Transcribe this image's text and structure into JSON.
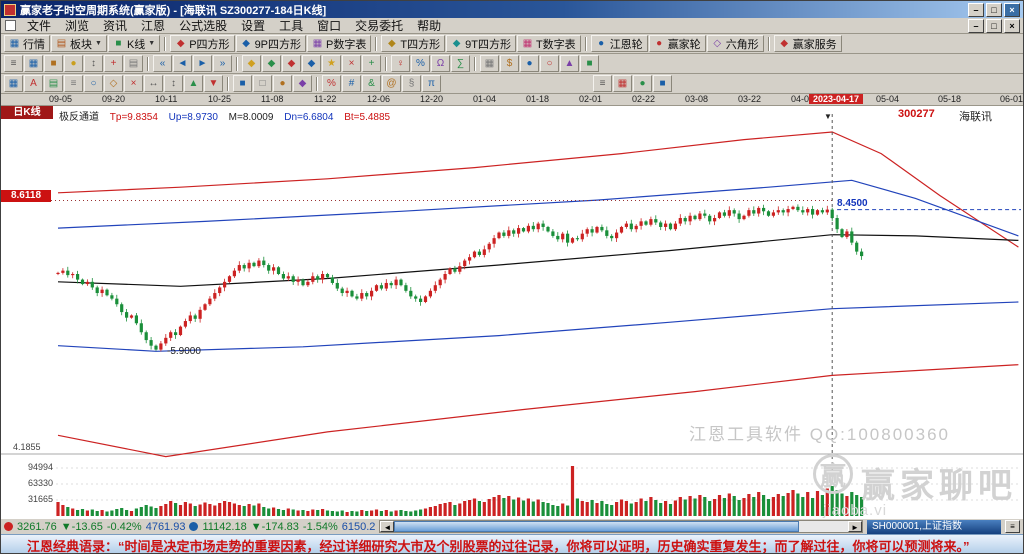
{
  "window": {
    "title": "赢家老子时空周期系统(赢家版) - [海联讯 SZ300277-184日K线]"
  },
  "titlebar_buttons": [
    "–",
    "□",
    "×"
  ],
  "menu": {
    "items": [
      "文件",
      "浏览",
      "资讯",
      "江恩",
      "公式选股",
      "设置",
      "工具",
      "窗口",
      "交易委托",
      "帮助"
    ],
    "child_controls": [
      "–",
      "□",
      "×"
    ]
  },
  "toolbar_main": [
    {
      "label": "行情",
      "icon": "▦",
      "color": "#1a5fa8"
    },
    {
      "label": "板块",
      "icon": "▤",
      "color": "#b0561a",
      "arrow": true
    },
    {
      "label": "K线",
      "icon": "■",
      "color": "#2a8f4a",
      "arrow": true
    },
    "|",
    {
      "label": "P四方形",
      "icon": "◆",
      "color": "#c03030"
    },
    {
      "label": "9P四方形",
      "icon": "◆",
      "color": "#1a5fa8"
    },
    {
      "label": "P数字表",
      "icon": "▦",
      "color": "#7a3fa8"
    },
    "|",
    {
      "label": "T四方形",
      "icon": "◆",
      "color": "#b0861a"
    },
    {
      "label": "9T四方形",
      "icon": "◆",
      "color": "#1a8f8f"
    },
    {
      "label": "T数字表",
      "icon": "▦",
      "color": "#c0306f"
    },
    "|",
    {
      "label": "江恩轮",
      "icon": "●",
      "color": "#1a5fa8"
    },
    {
      "label": "赢家轮",
      "icon": "●",
      "color": "#c03030"
    },
    {
      "label": "六角形",
      "icon": "◇",
      "color": "#7a3fa8"
    },
    "|",
    {
      "label": "赢家服务",
      "icon": "◆",
      "color": "#c03030"
    }
  ],
  "toolbar_icons_2": [
    {
      "g": "≡",
      "c": "#555555"
    },
    {
      "g": "▦",
      "c": "#1a5fa8"
    },
    {
      "g": "■",
      "c": "#b07020"
    },
    {
      "g": "●",
      "c": "#caa020"
    },
    {
      "g": "↕",
      "c": "#555555"
    },
    {
      "g": "+",
      "c": "#c03030"
    },
    {
      "g": "▤",
      "c": "#777777"
    },
    "|",
    {
      "g": "«",
      "c": "#1a5fa8"
    },
    {
      "g": "◄",
      "c": "#1a5fa8"
    },
    {
      "g": "►",
      "c": "#1a5fa8"
    },
    {
      "g": "»",
      "c": "#1a5fa8"
    },
    "|",
    {
      "g": "◆",
      "c": "#d0a020"
    },
    {
      "g": "◆",
      "c": "#2a8f4a"
    },
    {
      "g": "◆",
      "c": "#c03030"
    },
    {
      "g": "◆",
      "c": "#1a5fa8"
    },
    {
      "g": "★",
      "c": "#d0a020"
    },
    {
      "g": "×",
      "c": "#c03030"
    },
    {
      "g": "+",
      "c": "#2a8f4a"
    },
    "|",
    {
      "g": "♀",
      "c": "#c03030"
    },
    {
      "g": "%",
      "c": "#1a5fa8"
    },
    {
      "g": "Ω",
      "c": "#7a3fa8"
    },
    {
      "g": "∑",
      "c": "#2a8f4a"
    },
    "|",
    {
      "g": "▦",
      "c": "#777777"
    },
    {
      "g": "$",
      "c": "#b07020"
    },
    {
      "g": "●",
      "c": "#1a5fa8"
    },
    {
      "g": "○",
      "c": "#c03030"
    },
    {
      "g": "▲",
      "c": "#7a3fa8"
    },
    {
      "g": "■",
      "c": "#2a8f4a"
    }
  ],
  "toolbar_icons_3": [
    {
      "g": "▦",
      "c": "#1a5fa8"
    },
    {
      "g": "A",
      "c": "#c03030"
    },
    {
      "g": "▤",
      "c": "#2a8f4a"
    },
    {
      "g": "≡",
      "c": "#777777"
    },
    {
      "g": "○",
      "c": "#1a5fa8"
    },
    {
      "g": "◇",
      "c": "#b07020"
    },
    {
      "g": "×",
      "c": "#c03030"
    },
    {
      "g": "↔",
      "c": "#555555"
    },
    {
      "g": "↕",
      "c": "#555555"
    },
    {
      "g": "▲",
      "c": "#2a8f4a"
    },
    {
      "g": "▼",
      "c": "#c03030"
    },
    "|",
    {
      "g": "■",
      "c": "#1a5fa8"
    },
    {
      "g": "□",
      "c": "#777777"
    },
    {
      "g": "●",
      "c": "#b07020"
    },
    {
      "g": "◆",
      "c": "#7a3fa8"
    },
    "|",
    {
      "g": "%",
      "c": "#c03030"
    },
    {
      "g": "#",
      "c": "#1a5fa8"
    },
    {
      "g": "&",
      "c": "#2a8f4a"
    },
    {
      "g": "@",
      "c": "#b07020"
    },
    {
      "g": "§",
      "c": "#777777"
    },
    {
      "g": "π",
      "c": "#1a5fa8"
    },
    "gap",
    {
      "g": "≡",
      "c": "#555555"
    },
    {
      "g": "▦",
      "c": "#c03030"
    },
    {
      "g": "●",
      "c": "#2a8f4a"
    },
    {
      "g": "■",
      "c": "#1a5fa8"
    }
  ],
  "chart_labels": {
    "period": "日K线",
    "indicator": "极反通道",
    "tp": "Tp=9.8354",
    "up": "Up=8.9730",
    "m": "M=8.0009",
    "dn": "Dn=6.6804",
    "bt": "Bt=5.4885",
    "code": "300277",
    "name": "海联讯",
    "level_left": "8.6118",
    "level_recent": "8.4500",
    "low_mark": "-5.9000",
    "price_bottom": "4.1855",
    "vol_axis": [
      "94994",
      "63330",
      "31665"
    ]
  },
  "watermarks": {
    "line1": "江恩工具软件  QQ:100800360",
    "logo": "赢",
    "big": "赢家聊吧",
    "url": "jiaoba.vi"
  },
  "status": {
    "sh": {
      "price": "3261.76",
      "change": "▼-13.65",
      "pct": "-0.42%",
      "amount": "4761.93"
    },
    "sz": {
      "price": "11142.18",
      "change": "▼-174.83",
      "pct": "-1.54%",
      "amount": "6150.2"
    },
    "right_label": "SH000001,上证指数"
  },
  "quote": "江恩经典语录：“时间是决定市场走势的重要因素，经过详细研究大市及个别股票的过往记录，你将可以证明，历史确实重复发生；而了解过往，你将可以预测将来。”",
  "chart_data": {
    "type": "candlestick",
    "code": "300277",
    "name": "海联讯",
    "period": "日K线",
    "indicator": {
      "name": "极反通道",
      "Tp": 9.8354,
      "Up": 8.973,
      "M": 8.0009,
      "Dn": 6.6804,
      "Bt": 5.4885
    },
    "levels": {
      "left_level": 8.6118,
      "recent_level": 8.45,
      "marked_low": 5.9,
      "bottom_axis": 4.1855
    },
    "volume_axis": [
      94994,
      63330,
      31665
    ],
    "dates": [
      "09-05",
      "09-20",
      "10-11",
      "10-25",
      "11-08",
      "11-22",
      "12-06",
      "12-20",
      "01-04",
      "01-18",
      "02-01",
      "02-22",
      "03-08",
      "03-22",
      "04-06"
    ],
    "highlight_date": "2023-04-17",
    "future_dates": [
      "05-04",
      "05-18",
      "06-01"
    ],
    "first_open": 7.3,
    "closes": [
      7.32,
      7.36,
      7.28,
      7.3,
      7.2,
      7.12,
      7.16,
      7.06,
      6.96,
      7.02,
      6.92,
      6.86,
      6.76,
      6.62,
      6.52,
      6.56,
      6.42,
      6.26,
      6.12,
      6.02,
      5.95,
      6.06,
      6.16,
      6.26,
      6.21,
      6.36,
      6.46,
      6.56,
      6.5,
      6.66,
      6.76,
      6.86,
      6.96,
      7.06,
      7.16,
      7.26,
      7.36,
      7.46,
      7.4,
      7.5,
      7.44,
      7.54,
      7.46,
      7.36,
      7.42,
      7.3,
      7.22,
      7.26,
      7.16,
      7.2,
      7.1,
      7.16,
      7.26,
      7.2,
      7.3,
      7.24,
      7.14,
      7.04,
      6.96,
      7.0,
      6.9,
      6.86,
      6.96,
      6.9,
      7.0,
      7.1,
      7.04,
      7.14,
      7.1,
      7.2,
      7.1,
      7.0,
      6.9,
      6.86,
      6.8,
      6.9,
      7.0,
      7.1,
      7.2,
      7.3,
      7.4,
      7.34,
      7.44,
      7.54,
      7.6,
      7.7,
      7.64,
      7.74,
      7.84,
      7.94,
      8.04,
      7.98,
      8.08,
      8.02,
      8.12,
      8.06,
      8.16,
      8.1,
      8.2,
      8.14,
      8.06,
      7.98,
      7.92,
      8.02,
      7.86,
      7.94,
      7.92,
      8.02,
      8.1,
      8.04,
      8.14,
      8.08,
      7.98,
      7.94,
      8.04,
      8.14,
      8.2,
      8.1,
      8.16,
      8.24,
      8.18,
      8.28,
      8.22,
      8.14,
      8.2,
      8.1,
      8.2,
      8.3,
      8.24,
      8.34,
      8.28,
      8.38,
      8.34,
      8.24,
      8.3,
      8.4,
      8.34,
      8.44,
      8.38,
      8.28,
      8.34,
      8.44,
      8.38,
      8.48,
      8.42,
      8.34,
      8.4,
      8.44,
      8.4,
      8.46,
      8.5,
      8.44,
      8.4,
      8.46,
      8.36,
      8.44,
      8.4,
      8.45,
      8.3,
      8.1,
      7.96,
      8.06,
      7.86,
      7.7,
      7.62
    ],
    "volumes": [
      28,
      22,
      18,
      15,
      12,
      14,
      11,
      13,
      10,
      12,
      9,
      11,
      14,
      16,
      12,
      10,
      15,
      18,
      22,
      19,
      16,
      20,
      24,
      30,
      26,
      22,
      28,
      25,
      20,
      23,
      27,
      24,
      21,
      26,
      30,
      28,
      25,
      22,
      20,
      24,
      21,
      25,
      18,
      15,
      17,
      14,
      12,
      15,
      13,
      11,
      12,
      10,
      13,
      12,
      14,
      11,
      10,
      9,
      11,
      8,
      10,
      9,
      12,
      10,
      11,
      13,
      10,
      12,
      9,
      11,
      12,
      10,
      9,
      11,
      13,
      15,
      18,
      20,
      24,
      26,
      28,
      22,
      25,
      30,
      32,
      35,
      30,
      28,
      34,
      38,
      42,
      36,
      40,
      33,
      37,
      31,
      35,
      29,
      33,
      28,
      26,
      22,
      20,
      25,
      21,
      100,
      35,
      30,
      28,
      32,
      26,
      30,
      24,
      22,
      28,
      33,
      30,
      25,
      28,
      35,
      30,
      38,
      32,
      26,
      30,
      24,
      31,
      38,
      33,
      40,
      35,
      42,
      38,
      30,
      34,
      42,
      36,
      45,
      40,
      32,
      36,
      44,
      38,
      48,
      42,
      34,
      38,
      44,
      40,
      46,
      52,
      45,
      38,
      48,
      36,
      50,
      42,
      55,
      60,
      52,
      45,
      40,
      48,
      42,
      38
    ],
    "channels": {
      "tp": [
        [
          0,
          8.75
        ],
        [
          25,
          8.85
        ],
        [
          55,
          9.0
        ],
        [
          85,
          9.2
        ],
        [
          115,
          9.45
        ],
        [
          140,
          9.7
        ],
        [
          158,
          9.8354
        ],
        [
          168,
          9.45
        ],
        [
          180,
          8.7
        ],
        [
          196,
          7.78
        ]
      ],
      "up": [
        [
          0,
          8.12
        ],
        [
          30,
          8.24
        ],
        [
          70,
          8.42
        ],
        [
          110,
          8.62
        ],
        [
          145,
          8.85
        ],
        [
          162,
          8.973
        ],
        [
          175,
          8.65
        ],
        [
          196,
          7.98
        ]
      ],
      "m": [
        [
          0,
          7.16
        ],
        [
          25,
          7.08
        ],
        [
          55,
          7.22
        ],
        [
          90,
          7.46
        ],
        [
          125,
          7.72
        ],
        [
          158,
          8.0009
        ],
        [
          175,
          7.98
        ],
        [
          196,
          7.9
        ]
      ],
      "dn": [
        [
          0,
          6.02
        ],
        [
          20,
          5.92
        ],
        [
          50,
          6.0
        ],
        [
          90,
          6.2
        ],
        [
          125,
          6.44
        ],
        [
          158,
          6.6804
        ],
        [
          196,
          6.8
        ]
      ],
      "bt": [
        [
          0,
          4.42
        ],
        [
          22,
          4.04
        ],
        [
          55,
          4.48
        ],
        [
          95,
          4.88
        ],
        [
          130,
          5.2
        ],
        [
          158,
          5.4885
        ],
        [
          196,
          5.68
        ]
      ]
    },
    "colors": {
      "up": "#cc2222",
      "down": "#1a8f3a",
      "tp_line": "#cc2222",
      "up_line": "#2244bb",
      "m_line": "#111111",
      "dn_line": "#2244bb",
      "bt_line": "#cc2222"
    }
  }
}
